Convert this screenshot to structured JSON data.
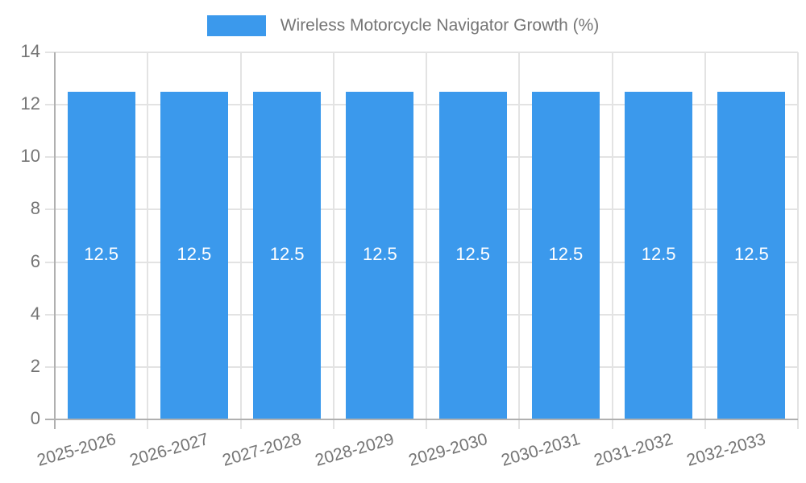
{
  "legend": {
    "label": "Wireless Motorcycle Navigator Growth (%)"
  },
  "chart_data": {
    "type": "bar",
    "title": "Wireless Motorcycle Navigator Growth (%)",
    "categories": [
      "2025-2026",
      "2026-2027",
      "2027-2028",
      "2028-2029",
      "2029-2030",
      "2030-2031",
      "2031-2032",
      "2032-2033"
    ],
    "values": [
      12.5,
      12.5,
      12.5,
      12.5,
      12.5,
      12.5,
      12.5,
      12.5
    ],
    "bar_labels": [
      "12.5",
      "12.5",
      "12.5",
      "12.5",
      "12.5",
      "12.5",
      "12.5",
      "12.5"
    ],
    "xlabel": "",
    "ylabel": "",
    "ylim": [
      0,
      14
    ],
    "yticks": [
      0,
      2,
      4,
      6,
      8,
      10,
      12,
      14
    ],
    "grid": true,
    "legend_position": "top",
    "colors": {
      "bar": "#3b99ec",
      "value_label": "#ffffff",
      "tick_text": "#757575",
      "legend_text": "#757575",
      "grid": "#e3e3e3",
      "axis": "#b0b0b0",
      "background": "#ffffff"
    }
  }
}
